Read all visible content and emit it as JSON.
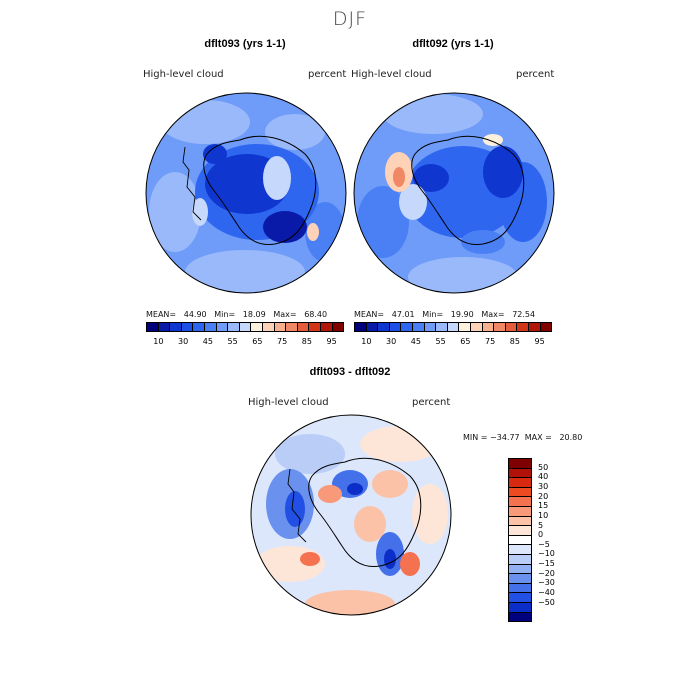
{
  "page": {
    "season": "DJF"
  },
  "panels": [
    {
      "id": "p1",
      "case_title": "dflt093 (yrs 1-1)",
      "var_label": "High-level  cloud",
      "units_label": "percent",
      "stats": "MEAN=   44.90   Min=   18.09   Max=   68.40"
    },
    {
      "id": "p2",
      "case_title": "dflt092 (yrs 1-1)",
      "var_label": "High-level  cloud",
      "units_label": "percent",
      "stats": "MEAN=   47.01   Min=   19.90   Max=   72.54"
    }
  ],
  "diff_panel": {
    "title": "dflt093 - dflt092",
    "var_label": "High-level  cloud",
    "units_label": "percent",
    "minmax": "MIN = −34.77  MAX =   20.80"
  },
  "abs_colorbar": {
    "colors": [
      "#00007f",
      "#0a1aa8",
      "#1036d0",
      "#1c4fe8",
      "#2f66f0",
      "#4b80f5",
      "#6f9cf8",
      "#9ab9fa",
      "#c6d8fc",
      "#fdf0dc",
      "#fdd2b6",
      "#f8b08e",
      "#f08866",
      "#e55c3c",
      "#d23618",
      "#b0160a",
      "#7f0000"
    ],
    "labels": [
      "10",
      "30",
      "45",
      "55",
      "65",
      "75",
      "85",
      "95"
    ]
  },
  "diff_colorbar": {
    "colors": [
      "#7f0000",
      "#b0120a",
      "#d82a10",
      "#ee4a22",
      "#f47250",
      "#f89a7a",
      "#fbc2a8",
      "#fde6d8",
      "#ffffff",
      "#dde7fb",
      "#b9cdf6",
      "#93b0f2",
      "#6b91ee",
      "#4470ea",
      "#2250e4",
      "#0c2ec8",
      "#00007f"
    ],
    "labels": [
      "50",
      "40",
      "30",
      "20",
      "15",
      "10",
      "5",
      "0",
      "−5",
      "−10",
      "−15",
      "−20",
      "−30",
      "−40",
      "−50"
    ]
  },
  "map_colors": {
    "deep": "#0a2ee0",
    "mid": "#2f66f0",
    "light": "#6f9cf8",
    "pale": "#c6d8fc",
    "warm": "#fdd2b6",
    "hot": "#f08866",
    "diff_neg": "#4470ea",
    "diff_pos": "#f47250"
  }
}
